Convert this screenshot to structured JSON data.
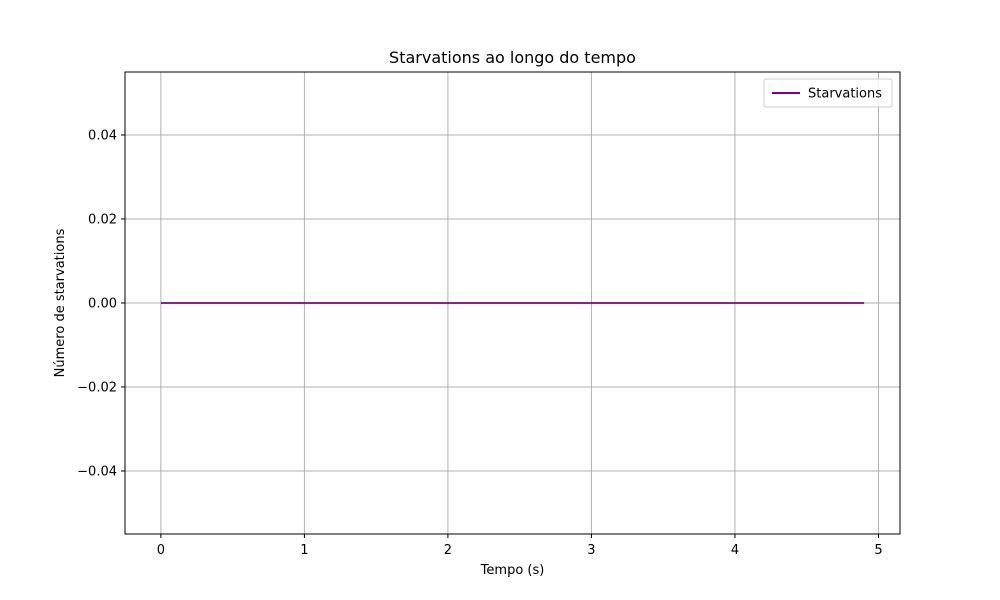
{
  "chart_data": {
    "type": "line",
    "title": "Starvations ao longo do tempo",
    "xlabel": "Tempo (s)",
    "ylabel": "Número de starvations",
    "xlim": [
      -0.25,
      5.15
    ],
    "ylim": [
      -0.055,
      0.055
    ],
    "x_ticks": [
      0,
      1,
      2,
      3,
      4,
      5
    ],
    "x_tick_labels": [
      "0",
      "1",
      "2",
      "3",
      "4",
      "5"
    ],
    "y_ticks": [
      -0.04,
      -0.02,
      0.0,
      0.02,
      0.04
    ],
    "y_tick_labels": [
      "−0.04",
      "−0.02",
      "0.00",
      "0.02",
      "0.04"
    ],
    "grid": true,
    "legend_position": "top-right",
    "series": [
      {
        "name": "Starvations",
        "color": "#800080",
        "x": [
          0.0,
          0.1,
          0.2,
          0.3,
          0.4,
          0.5,
          0.6,
          0.7,
          0.8,
          0.9,
          1.0,
          1.1,
          1.2,
          1.3,
          1.4,
          1.5,
          1.6,
          1.7,
          1.8,
          1.9,
          2.0,
          2.1,
          2.2,
          2.3,
          2.4,
          2.5,
          2.6,
          2.7,
          2.8,
          2.9,
          3.0,
          3.1,
          3.2,
          3.3,
          3.4,
          3.5,
          3.6,
          3.7,
          3.8,
          3.9,
          4.0,
          4.1,
          4.2,
          4.3,
          4.4,
          4.5,
          4.6,
          4.7,
          4.8,
          4.9
        ],
        "y": [
          0,
          0,
          0,
          0,
          0,
          0,
          0,
          0,
          0,
          0,
          0,
          0,
          0,
          0,
          0,
          0,
          0,
          0,
          0,
          0,
          0,
          0,
          0,
          0,
          0,
          0,
          0,
          0,
          0,
          0,
          0,
          0,
          0,
          0,
          0,
          0,
          0,
          0,
          0,
          0,
          0,
          0,
          0,
          0,
          0,
          0,
          0,
          0,
          0,
          0
        ]
      }
    ],
    "colors": {
      "grid": "#b0b0b0",
      "axes": "#000000"
    }
  }
}
